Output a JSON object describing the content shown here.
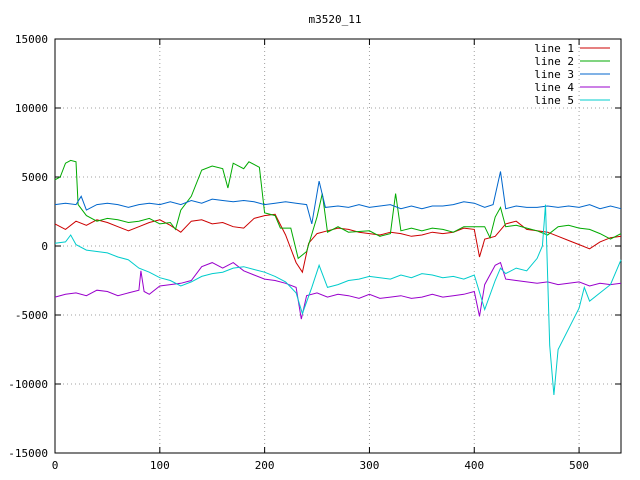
{
  "chart_data": {
    "type": "line",
    "title": "m3520_11",
    "xlabel": "",
    "ylabel": "",
    "xlim": [
      0,
      540
    ],
    "ylim": [
      -15000,
      15000
    ],
    "x_ticks": [
      0,
      100,
      200,
      300,
      400,
      500
    ],
    "y_ticks": [
      -15000,
      -10000,
      -5000,
      0,
      5000,
      10000,
      15000
    ],
    "grid": true,
    "legend_position": "top-right",
    "series": [
      {
        "name": "line 1",
        "color": "#cc0000",
        "points": [
          [
            0,
            1600
          ],
          [
            10,
            1200
          ],
          [
            20,
            1800
          ],
          [
            30,
            1500
          ],
          [
            40,
            1900
          ],
          [
            50,
            1700
          ],
          [
            60,
            1400
          ],
          [
            70,
            1100
          ],
          [
            80,
            1400
          ],
          [
            90,
            1700
          ],
          [
            100,
            1900
          ],
          [
            110,
            1500
          ],
          [
            120,
            1000
          ],
          [
            130,
            1800
          ],
          [
            140,
            1900
          ],
          [
            150,
            1600
          ],
          [
            160,
            1700
          ],
          [
            170,
            1400
          ],
          [
            180,
            1300
          ],
          [
            190,
            2000
          ],
          [
            200,
            2200
          ],
          [
            210,
            2300
          ],
          [
            220,
            800
          ],
          [
            230,
            -1200
          ],
          [
            236,
            -1900
          ],
          [
            242,
            200
          ],
          [
            250,
            900
          ],
          [
            260,
            1100
          ],
          [
            270,
            1300
          ],
          [
            280,
            1200
          ],
          [
            290,
            1000
          ],
          [
            300,
            900
          ],
          [
            310,
            800
          ],
          [
            320,
            1000
          ],
          [
            330,
            900
          ],
          [
            340,
            700
          ],
          [
            350,
            800
          ],
          [
            360,
            1000
          ],
          [
            370,
            900
          ],
          [
            380,
            1000
          ],
          [
            390,
            1300
          ],
          [
            400,
            1200
          ],
          [
            405,
            -800
          ],
          [
            410,
            500
          ],
          [
            420,
            700
          ],
          [
            430,
            1600
          ],
          [
            440,
            1800
          ],
          [
            450,
            1200
          ],
          [
            460,
            1100
          ],
          [
            470,
            1000
          ],
          [
            480,
            700
          ],
          [
            490,
            400
          ],
          [
            500,
            100
          ],
          [
            510,
            -200
          ],
          [
            520,
            300
          ],
          [
            530,
            600
          ],
          [
            540,
            700
          ]
        ]
      },
      {
        "name": "line 2",
        "color": "#00aa00",
        "points": [
          [
            0,
            4800
          ],
          [
            5,
            5000
          ],
          [
            10,
            6000
          ],
          [
            15,
            6200
          ],
          [
            20,
            6100
          ],
          [
            22,
            3000
          ],
          [
            30,
            2200
          ],
          [
            40,
            1800
          ],
          [
            50,
            2000
          ],
          [
            60,
            1900
          ],
          [
            70,
            1700
          ],
          [
            80,
            1800
          ],
          [
            90,
            2000
          ],
          [
            100,
            1600
          ],
          [
            110,
            1700
          ],
          [
            115,
            1200
          ],
          [
            120,
            2600
          ],
          [
            130,
            3600
          ],
          [
            140,
            5500
          ],
          [
            150,
            5800
          ],
          [
            160,
            5600
          ],
          [
            165,
            4200
          ],
          [
            170,
            6000
          ],
          [
            180,
            5600
          ],
          [
            185,
            6100
          ],
          [
            195,
            5700
          ],
          [
            200,
            2400
          ],
          [
            210,
            2200
          ],
          [
            215,
            1300
          ],
          [
            225,
            1300
          ],
          [
            232,
            -900
          ],
          [
            240,
            -400
          ],
          [
            250,
            2100
          ],
          [
            255,
            3800
          ],
          [
            260,
            1000
          ],
          [
            270,
            1400
          ],
          [
            280,
            1000
          ],
          [
            300,
            1100
          ],
          [
            310,
            700
          ],
          [
            320,
            900
          ],
          [
            325,
            3800
          ],
          [
            330,
            1100
          ],
          [
            340,
            1300
          ],
          [
            350,
            1100
          ],
          [
            360,
            1300
          ],
          [
            370,
            1200
          ],
          [
            380,
            1000
          ],
          [
            390,
            1400
          ],
          [
            400,
            1400
          ],
          [
            410,
            1400
          ],
          [
            415,
            600
          ],
          [
            420,
            2100
          ],
          [
            425,
            2800
          ],
          [
            430,
            1400
          ],
          [
            440,
            1500
          ],
          [
            450,
            1300
          ],
          [
            460,
            1100
          ],
          [
            470,
            800
          ],
          [
            480,
            1400
          ],
          [
            490,
            1500
          ],
          [
            500,
            1300
          ],
          [
            510,
            1200
          ],
          [
            520,
            900
          ],
          [
            530,
            500
          ],
          [
            540,
            900
          ]
        ]
      },
      {
        "name": "line 3",
        "color": "#0066cc",
        "points": [
          [
            0,
            3000
          ],
          [
            10,
            3100
          ],
          [
            20,
            3000
          ],
          [
            25,
            3600
          ],
          [
            30,
            2600
          ],
          [
            40,
            3000
          ],
          [
            50,
            3100
          ],
          [
            60,
            3000
          ],
          [
            70,
            2800
          ],
          [
            80,
            3000
          ],
          [
            90,
            3100
          ],
          [
            100,
            3000
          ],
          [
            110,
            3200
          ],
          [
            120,
            3000
          ],
          [
            130,
            3300
          ],
          [
            140,
            3100
          ],
          [
            150,
            3400
          ],
          [
            160,
            3300
          ],
          [
            170,
            3200
          ],
          [
            180,
            3300
          ],
          [
            190,
            3200
          ],
          [
            200,
            3000
          ],
          [
            210,
            3100
          ],
          [
            220,
            3200
          ],
          [
            230,
            3100
          ],
          [
            240,
            3000
          ],
          [
            245,
            1600
          ],
          [
            252,
            4700
          ],
          [
            258,
            2800
          ],
          [
            270,
            2900
          ],
          [
            280,
            2800
          ],
          [
            290,
            3000
          ],
          [
            300,
            2800
          ],
          [
            310,
            2900
          ],
          [
            320,
            3000
          ],
          [
            330,
            2700
          ],
          [
            340,
            2900
          ],
          [
            350,
            2700
          ],
          [
            360,
            2900
          ],
          [
            370,
            2900
          ],
          [
            380,
            3000
          ],
          [
            390,
            3200
          ],
          [
            400,
            3100
          ],
          [
            410,
            2800
          ],
          [
            418,
            3000
          ],
          [
            425,
            5400
          ],
          [
            430,
            2700
          ],
          [
            440,
            2900
          ],
          [
            450,
            2800
          ],
          [
            460,
            2800
          ],
          [
            470,
            2900
          ],
          [
            480,
            2800
          ],
          [
            490,
            2900
          ],
          [
            500,
            2800
          ],
          [
            510,
            3000
          ],
          [
            520,
            2700
          ],
          [
            530,
            2900
          ],
          [
            540,
            2700
          ]
        ]
      },
      {
        "name": "line 4",
        "color": "#9900cc",
        "points": [
          [
            0,
            -3700
          ],
          [
            10,
            -3500
          ],
          [
            20,
            -3400
          ],
          [
            30,
            -3600
          ],
          [
            40,
            -3200
          ],
          [
            50,
            -3300
          ],
          [
            60,
            -3600
          ],
          [
            70,
            -3400
          ],
          [
            80,
            -3200
          ],
          [
            82,
            -1800
          ],
          [
            85,
            -3300
          ],
          [
            90,
            -3500
          ],
          [
            100,
            -2900
          ],
          [
            110,
            -2800
          ],
          [
            120,
            -2700
          ],
          [
            130,
            -2500
          ],
          [
            140,
            -1500
          ],
          [
            150,
            -1200
          ],
          [
            160,
            -1600
          ],
          [
            170,
            -1200
          ],
          [
            180,
            -1800
          ],
          [
            190,
            -2100
          ],
          [
            200,
            -2400
          ],
          [
            210,
            -2500
          ],
          [
            220,
            -2700
          ],
          [
            230,
            -3000
          ],
          [
            235,
            -5300
          ],
          [
            240,
            -3600
          ],
          [
            250,
            -3400
          ],
          [
            260,
            -3700
          ],
          [
            270,
            -3500
          ],
          [
            280,
            -3600
          ],
          [
            290,
            -3800
          ],
          [
            300,
            -3500
          ],
          [
            310,
            -3800
          ],
          [
            320,
            -3700
          ],
          [
            330,
            -3600
          ],
          [
            340,
            -3800
          ],
          [
            350,
            -3700
          ],
          [
            360,
            -3500
          ],
          [
            370,
            -3700
          ],
          [
            380,
            -3600
          ],
          [
            390,
            -3500
          ],
          [
            400,
            -3300
          ],
          [
            405,
            -5100
          ],
          [
            410,
            -2800
          ],
          [
            420,
            -1400
          ],
          [
            425,
            -1200
          ],
          [
            430,
            -2400
          ],
          [
            440,
            -2500
          ],
          [
            450,
            -2600
          ],
          [
            460,
            -2700
          ],
          [
            470,
            -2600
          ],
          [
            480,
            -2800
          ],
          [
            490,
            -2700
          ],
          [
            500,
            -2600
          ],
          [
            510,
            -2900
          ],
          [
            520,
            -2700
          ],
          [
            530,
            -2800
          ],
          [
            540,
            -2700
          ]
        ]
      },
      {
        "name": "line 5",
        "color": "#00cccc",
        "points": [
          [
            0,
            200
          ],
          [
            10,
            300
          ],
          [
            15,
            800
          ],
          [
            20,
            100
          ],
          [
            30,
            -300
          ],
          [
            40,
            -400
          ],
          [
            50,
            -500
          ],
          [
            60,
            -800
          ],
          [
            70,
            -1000
          ],
          [
            80,
            -1600
          ],
          [
            90,
            -1900
          ],
          [
            100,
            -2300
          ],
          [
            110,
            -2500
          ],
          [
            120,
            -2900
          ],
          [
            130,
            -2600
          ],
          [
            140,
            -2200
          ],
          [
            150,
            -2000
          ],
          [
            160,
            -1900
          ],
          [
            170,
            -1600
          ],
          [
            180,
            -1500
          ],
          [
            190,
            -1700
          ],
          [
            200,
            -1900
          ],
          [
            210,
            -2200
          ],
          [
            220,
            -2600
          ],
          [
            230,
            -3400
          ],
          [
            236,
            -4900
          ],
          [
            245,
            -3000
          ],
          [
            252,
            -1400
          ],
          [
            260,
            -3000
          ],
          [
            270,
            -2800
          ],
          [
            280,
            -2500
          ],
          [
            290,
            -2400
          ],
          [
            300,
            -2200
          ],
          [
            310,
            -2300
          ],
          [
            320,
            -2400
          ],
          [
            330,
            -2100
          ],
          [
            340,
            -2300
          ],
          [
            350,
            -2000
          ],
          [
            360,
            -2100
          ],
          [
            370,
            -2300
          ],
          [
            380,
            -2200
          ],
          [
            390,
            -2400
          ],
          [
            400,
            -2100
          ],
          [
            410,
            -4600
          ],
          [
            420,
            -2500
          ],
          [
            425,
            -1600
          ],
          [
            430,
            -2000
          ],
          [
            440,
            -1600
          ],
          [
            450,
            -1800
          ],
          [
            460,
            -900
          ],
          [
            465,
            0
          ],
          [
            468,
            3000
          ],
          [
            472,
            -7200
          ],
          [
            476,
            -10800
          ],
          [
            480,
            -7500
          ],
          [
            490,
            -6000
          ],
          [
            500,
            -4500
          ],
          [
            505,
            -3000
          ],
          [
            510,
            -4000
          ],
          [
            520,
            -3400
          ],
          [
            530,
            -2800
          ],
          [
            540,
            -1000
          ]
        ]
      }
    ]
  }
}
